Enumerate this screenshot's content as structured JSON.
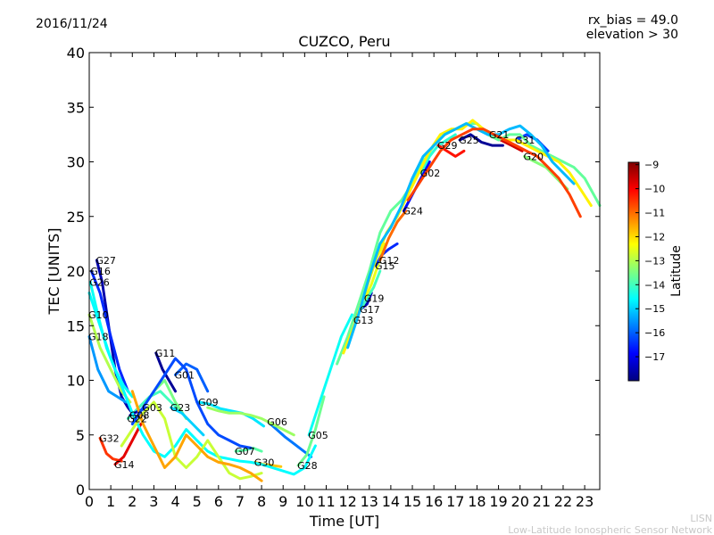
{
  "header": {
    "date": "2016/11/24",
    "rx_bias": "rx_bias = 49.0",
    "elevation": "elevation > 30"
  },
  "watermark": {
    "line1": "LISN",
    "line2": "Low-Latitude Ionospheric Sensor Network"
  },
  "chart_data": {
    "type": "line",
    "title": "CUZCO, Peru",
    "xlabel": "Time [UT]",
    "ylabel": "TEC [UNITS]",
    "xlim": [
      0,
      23.7
    ],
    "ylim": [
      0,
      40
    ],
    "xticks": [
      0,
      1,
      2,
      3,
      4,
      5,
      6,
      7,
      8,
      9,
      10,
      11,
      12,
      13,
      14,
      15,
      16,
      17,
      18,
      19,
      20,
      21,
      22,
      23
    ],
    "yticks": [
      0,
      5,
      10,
      15,
      20,
      25,
      30,
      35,
      40
    ],
    "grid": false,
    "colorbar": {
      "label": "Latitude",
      "range": [
        -18,
        -8.9
      ],
      "ticks": [
        -9,
        -10,
        -11,
        -12,
        -13,
        -14,
        -15,
        -16,
        -17
      ],
      "colormap": [
        "#00007f",
        "#0000ff",
        "#007fff",
        "#00ffff",
        "#7fff7f",
        "#ffff00",
        "#ff7f00",
        "#ff0000",
        "#7f0000"
      ]
    },
    "series": [
      {
        "name": "G27",
        "lat": -17.6,
        "x": [
          0.35,
          0.6,
          0.9,
          1.2,
          1.5,
          1.8,
          2.0
        ],
        "y": [
          21,
          19,
          15,
          11,
          8.5,
          7.5,
          7
        ]
      },
      {
        "name": "G16",
        "lat": -16.5,
        "x": [
          0.1,
          0.5,
          1.0,
          1.4,
          1.8
        ],
        "y": [
          20,
          18,
          14,
          11,
          9
        ]
      },
      {
        "name": "G26",
        "lat": -14.5,
        "x": [
          0.05,
          0.4,
          0.8,
          1.2,
          1.6,
          2.0
        ],
        "y": [
          19,
          16,
          13,
          11,
          9.5,
          8.5
        ]
      },
      {
        "name": "G10",
        "lat": -13.0,
        "x": [
          0.0,
          0.5,
          1.0,
          1.5,
          1.9
        ],
        "y": [
          16,
          13,
          11,
          9,
          8
        ]
      },
      {
        "name": "G18",
        "lat": -15.5,
        "x": [
          0.0,
          0.4,
          0.9,
          1.3,
          1.7
        ],
        "y": [
          14,
          11,
          9,
          8.5,
          8
        ]
      },
      {
        "name": "G32",
        "lat": -10.5,
        "x": [
          0.5,
          0.8,
          1.1,
          1.5
        ],
        "y": [
          4.7,
          3.3,
          2.8,
          2.6
        ]
      },
      {
        "name": "G14",
        "lat": -9.8,
        "x": [
          1.2,
          1.6,
          2.0,
          2.4
        ],
        "y": [
          2.3,
          3.0,
          4.5,
          6.0
        ]
      },
      {
        "name": "G22",
        "lat": -14.0,
        "x": [
          1.8,
          2.3,
          2.8,
          3.3,
          3.8,
          4.3
        ],
        "y": [
          6.5,
          7.5,
          8.5,
          9.0,
          8.0,
          7.0
        ]
      },
      {
        "name": "G08",
        "lat": -17.3,
        "x": [
          1.9,
          2.3,
          2.7
        ],
        "y": [
          6.8,
          7.2,
          7.5
        ]
      },
      {
        "name": "G03",
        "lat": -13.5,
        "x": [
          2.5,
          3.0,
          3.5,
          4.0,
          4.5
        ],
        "y": [
          7.5,
          9.0,
          10.0,
          8.0,
          6.5
        ]
      },
      {
        "name": "G11",
        "lat": -17.8,
        "x": [
          3.1,
          3.4,
          3.7,
          4.0
        ],
        "y": [
          12.5,
          11.0,
          10.0,
          9.0
        ]
      },
      {
        "name": "G01",
        "lat": -16.0,
        "x": [
          4.0,
          4.5,
          5.0,
          5.5
        ],
        "y": [
          10.5,
          11.5,
          11.0,
          9.0
        ]
      },
      {
        "name": "G23",
        "lat": -15.0,
        "x": [
          3.8,
          4.3,
          4.8,
          5.3
        ],
        "y": [
          7.5,
          7.0,
          6.0,
          5.0
        ]
      },
      {
        "name": "G09",
        "lat": -14.8,
        "x": [
          5.1,
          5.6,
          6.1,
          6.6,
          7.1,
          7.6,
          8.1
        ],
        "y": [
          8.0,
          7.8,
          7.4,
          7.2,
          7.0,
          6.5,
          5.8
        ]
      },
      {
        "name": "G06",
        "lat": -15.8,
        "x": [
          8.3,
          8.7,
          9.1,
          9.5,
          9.9,
          10.3
        ],
        "y": [
          6.2,
          5.5,
          4.8,
          4.2,
          3.6,
          3.0
        ]
      },
      {
        "name": "G07",
        "lat": -13.8,
        "x": [
          6.8,
          7.2,
          7.6,
          8.0
        ],
        "y": [
          3.5,
          3.6,
          3.8,
          3.5
        ]
      },
      {
        "name": "G30",
        "lat": -11.8,
        "x": [
          7.7,
          8.1,
          8.5,
          8.9
        ],
        "y": [
          2.5,
          2.3,
          2.2,
          2.1
        ]
      },
      {
        "name": "G28",
        "lat": -13.6,
        "x": [
          9.7,
          10.1,
          10.5,
          10.9
        ],
        "y": [
          2.2,
          3.2,
          5.5,
          8.5
        ]
      },
      {
        "name": "G05",
        "lat": -14.5,
        "x": [
          10.2,
          10.7,
          11.2,
          11.7,
          12.2
        ],
        "y": [
          5.0,
          8.0,
          11.0,
          14.0,
          16.0
        ]
      },
      {
        "name": "G13",
        "lat": -17.5,
        "x": [
          12.3,
          12.6,
          12.9,
          13.1
        ],
        "y": [
          15.5,
          16.5,
          17.0,
          18.0
        ]
      },
      {
        "name": "G17",
        "lat": -14.0,
        "x": [
          12.6,
          12.9,
          13.2,
          13.5
        ],
        "y": [
          16.5,
          17.5,
          18.5,
          20.0
        ]
      },
      {
        "name": "G19",
        "lat": -12.5,
        "x": [
          12.8,
          13.1,
          13.4,
          13.7
        ],
        "y": [
          17.5,
          18.8,
          20.5,
          22.5
        ]
      },
      {
        "name": "G15",
        "lat": -16.5,
        "x": [
          13.3,
          13.6,
          13.9,
          14.3
        ],
        "y": [
          20.5,
          21.5,
          22.0,
          22.5
        ]
      },
      {
        "name": "G12",
        "lat": -11.0,
        "x": [
          13.5,
          13.9,
          14.3,
          14.7
        ],
        "y": [
          21.0,
          23.0,
          24.5,
          25.5
        ]
      },
      {
        "name": "G24",
        "lat": -16.8,
        "x": [
          14.6,
          15.0,
          15.4,
          15.8
        ],
        "y": [
          25.5,
          27.0,
          28.5,
          30.0
        ]
      },
      {
        "name": "G02",
        "lat": -14.2,
        "x": [
          15.4,
          15.8,
          16.2,
          16.6,
          17.0
        ],
        "y": [
          29.0,
          30.5,
          31.5,
          32.0,
          32.5
        ]
      },
      {
        "name": "G29",
        "lat": -10.2,
        "x": [
          16.2,
          16.6,
          17.0,
          17.4
        ],
        "y": [
          31.5,
          31.0,
          30.5,
          31.0
        ]
      },
      {
        "name": "G25",
        "lat": -17.8,
        "x": [
          17.2,
          17.7,
          18.2,
          18.7,
          19.2
        ],
        "y": [
          32.0,
          32.5,
          31.8,
          31.5,
          31.5
        ]
      },
      {
        "name": "G21",
        "lat": -9.6,
        "x": [
          18.6,
          19.1,
          19.6,
          20.1
        ],
        "y": [
          32.5,
          32.0,
          31.5,
          31.0
        ]
      },
      {
        "name": "G31",
        "lat": -16.3,
        "x": [
          19.8,
          20.3,
          20.8,
          21.3
        ],
        "y": [
          32.0,
          32.5,
          32.0,
          31.0
        ]
      },
      {
        "name": "G20",
        "lat": -13.4,
        "x": [
          20.2,
          20.7,
          21.2,
          21.7,
          22.2
        ],
        "y": [
          30.5,
          30.0,
          29.5,
          28.5,
          27.5
        ]
      },
      {
        "name": "",
        "lat": -13.7,
        "x": [
          11.5,
          12.0,
          12.5,
          13.0,
          13.5,
          14.0,
          14.5,
          15.0,
          15.5,
          16.0,
          16.5,
          17.0,
          17.5,
          18.0,
          18.5,
          19.0,
          19.5,
          20.0,
          20.5,
          21.0,
          21.5,
          22.0,
          22.5,
          23.0,
          23.7
        ],
        "y": [
          11.5,
          14.0,
          17.0,
          20.0,
          23.5,
          25.5,
          26.5,
          28.0,
          30.0,
          31.5,
          32.5,
          33.0,
          33.5,
          33.5,
          32.5,
          32.0,
          32.5,
          32.5,
          31.5,
          31.0,
          30.5,
          30.0,
          29.5,
          28.5,
          26.0
        ]
      },
      {
        "name": "",
        "lat": -12.2,
        "x": [
          11.8,
          12.3,
          12.8,
          13.3,
          13.8,
          14.3,
          14.8,
          15.3,
          15.8,
          16.3,
          16.8,
          17.3,
          17.8,
          18.3,
          18.8,
          19.3,
          19.8,
          20.3,
          20.8,
          21.3,
          21.8,
          22.3,
          22.8,
          23.3
        ],
        "y": [
          12.5,
          15.0,
          18.0,
          21.0,
          23.5,
          25.0,
          27.0,
          29.0,
          31.0,
          32.5,
          33.0,
          33.0,
          33.8,
          33.0,
          32.5,
          32.0,
          32.0,
          31.5,
          31.0,
          30.5,
          30.0,
          29.0,
          27.5,
          26.0
        ]
      },
      {
        "name": "",
        "lat": -15.2,
        "x": [
          12.0,
          12.5,
          13.0,
          13.5,
          14.0,
          14.5,
          15.0,
          15.5,
          16.0,
          16.5,
          17.0,
          17.5,
          18.0,
          18.5,
          19.0,
          19.5,
          20.0,
          20.5,
          21.0,
          21.5,
          22.0,
          22.5
        ],
        "y": [
          13.0,
          16.0,
          19.5,
          22.5,
          24.0,
          26.0,
          28.5,
          30.5,
          31.5,
          32.5,
          33.0,
          33.5,
          33.0,
          32.5,
          32.5,
          33.0,
          33.3,
          32.5,
          31.5,
          30.0,
          29.0,
          28.0
        ]
      },
      {
        "name": "",
        "lat": -10.6,
        "x": [
          14.8,
          15.3,
          15.8,
          16.3,
          16.8,
          17.3,
          17.8,
          18.3,
          18.8,
          19.3,
          19.8,
          20.3,
          20.8,
          21.3,
          21.8,
          22.3,
          22.8
        ],
        "y": [
          26.5,
          28.0,
          29.5,
          31.0,
          32.0,
          32.5,
          33.0,
          33.0,
          32.5,
          32.0,
          31.5,
          31.0,
          30.5,
          29.5,
          28.5,
          27.0,
          25.0
        ]
      },
      {
        "name": "",
        "lat": -14.6,
        "x": [
          0.0,
          0.5,
          1.0,
          1.5,
          2.0,
          2.5,
          3.0,
          3.5,
          4.0,
          4.5,
          5.0,
          5.5,
          6.0,
          6.5,
          7.0,
          7.5,
          8.0,
          8.5,
          9.0,
          9.5,
          10.0,
          10.5
        ],
        "y": [
          18.0,
          15.0,
          12.0,
          9.5,
          7.0,
          5.0,
          3.5,
          3.0,
          4.0,
          5.5,
          4.5,
          3.5,
          3.0,
          2.8,
          2.6,
          2.5,
          2.3,
          2.0,
          1.7,
          1.4,
          2.0,
          4.0
        ]
      },
      {
        "name": "",
        "lat": -12.8,
        "x": [
          1.5,
          2.0,
          2.5,
          3.0,
          3.5,
          4.0,
          4.5,
          5.0,
          5.5,
          6.0,
          6.5,
          7.0,
          7.5,
          8.0
        ],
        "y": [
          4.0,
          5.5,
          7.0,
          8.0,
          6.5,
          3.0,
          2.0,
          3.0,
          4.5,
          3.0,
          1.5,
          1.0,
          1.2,
          1.5
        ]
      },
      {
        "name": "",
        "lat": -11.5,
        "x": [
          2.0,
          2.5,
          3.0,
          3.5,
          4.0,
          4.5,
          5.0,
          5.5,
          6.0,
          6.5,
          7.0,
          7.5,
          8.0
        ],
        "y": [
          9.0,
          6.0,
          4.0,
          2.0,
          3.0,
          5.0,
          4.0,
          3.0,
          2.5,
          2.3,
          2.0,
          1.5,
          0.8
        ]
      },
      {
        "name": "",
        "lat": -16.2,
        "x": [
          2.0,
          2.5,
          3.0,
          3.5,
          4.0,
          4.5,
          5.0,
          5.5,
          6.0,
          6.5,
          7.0,
          7.5
        ],
        "y": [
          6.0,
          7.5,
          9.0,
          10.5,
          12.0,
          11.0,
          8.0,
          6.0,
          5.0,
          4.5,
          4.0,
          3.8
        ]
      },
      {
        "name": "",
        "lat": -13.2,
        "x": [
          5.5,
          6.0,
          6.5,
          7.0,
          7.5,
          8.0,
          8.5,
          9.0,
          9.5
        ],
        "y": [
          7.5,
          7.2,
          7.0,
          7.0,
          6.8,
          6.5,
          6.0,
          5.5,
          5.0
        ]
      }
    ]
  }
}
